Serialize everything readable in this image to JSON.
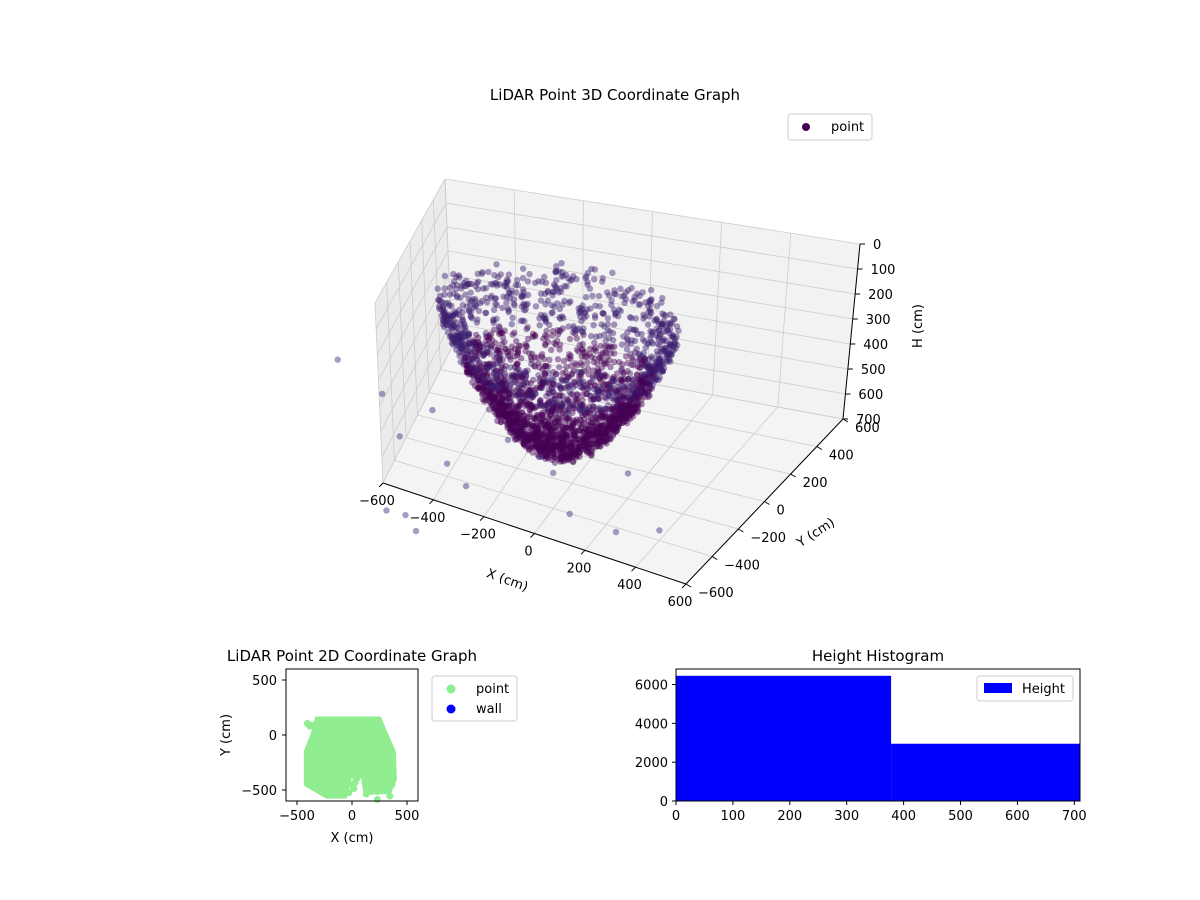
{
  "colors": {
    "point3d": "#440154",
    "point2d": "#90EE90",
    "wall": "#0000FF",
    "hist_bar": "#0000FF",
    "pane_left": "#ebebeb",
    "pane_right": "#f2f2f2",
    "pane_floor": "#f4f4f4",
    "grid": "#cccccc"
  },
  "chart_data": [
    {
      "type": "scatter3d",
      "title": "LiDAR Point 3D Coordinate Graph",
      "xlabel": "X (cm)",
      "ylabel": "Y (cm)",
      "zlabel": "H (cm)",
      "xlim": [
        -600,
        600
      ],
      "ylim": [
        -600,
        600
      ],
      "zlim": [
        0,
        700
      ],
      "zinverted": true,
      "xticks": [
        -600,
        -400,
        -200,
        0,
        200,
        400,
        600
      ],
      "yticks": [
        -600,
        -400,
        -200,
        0,
        200,
        400,
        600
      ],
      "zticks": [
        0,
        100,
        200,
        300,
        400,
        500,
        600,
        700
      ],
      "legend": [
        {
          "label": "point",
          "color": "#440154",
          "marker": "circle"
        }
      ],
      "legend_loc": "top-right",
      "grid": true,
      "description_of_cloud": "dense dome-shaped point cloud centred near x≈-50, y≈-100, spanning x≈-450..350, y≈-600..150, heights ≈0..600",
      "outliers": [
        {
          "x": -1400,
          "y": -200,
          "h": 650
        },
        {
          "x": -900,
          "y": -300,
          "h": 650
        },
        {
          "x": -1300,
          "y": -500,
          "h": 500
        }
      ]
    },
    {
      "type": "scatter",
      "title": "LiDAR Point 2D Coordinate Graph",
      "xlabel": "X (cm)",
      "ylabel": "Y (cm)",
      "xlim": [
        -600,
        600
      ],
      "ylim": [
        -600,
        600
      ],
      "xticks": [
        -500,
        0,
        500
      ],
      "yticks": [
        -500,
        0,
        500
      ],
      "series": [
        {
          "name": "point",
          "color": "#90EE90",
          "extent": {
            "x": [
              -420,
              390
            ],
            "y": [
              -600,
              150
            ]
          }
        },
        {
          "name": "wall",
          "color": "#0000FF",
          "values": []
        }
      ],
      "legend": [
        "point",
        "wall"
      ],
      "legend_loc": "outside-right"
    },
    {
      "type": "histogram",
      "title": "Height Histogram",
      "xlim": [
        0,
        710
      ],
      "ylim": [
        0,
        6800
      ],
      "xticks": [
        0,
        100,
        200,
        300,
        400,
        500,
        600,
        700
      ],
      "yticks": [
        0,
        2000,
        4000,
        6000
      ],
      "bins": [
        {
          "from": 0,
          "to": 378,
          "count": 6450
        },
        {
          "from": 378,
          "to": 710,
          "count": 2950
        }
      ],
      "legend": [
        {
          "label": "Height",
          "color": "#0000FF"
        }
      ],
      "legend_loc": "top-right"
    }
  ]
}
